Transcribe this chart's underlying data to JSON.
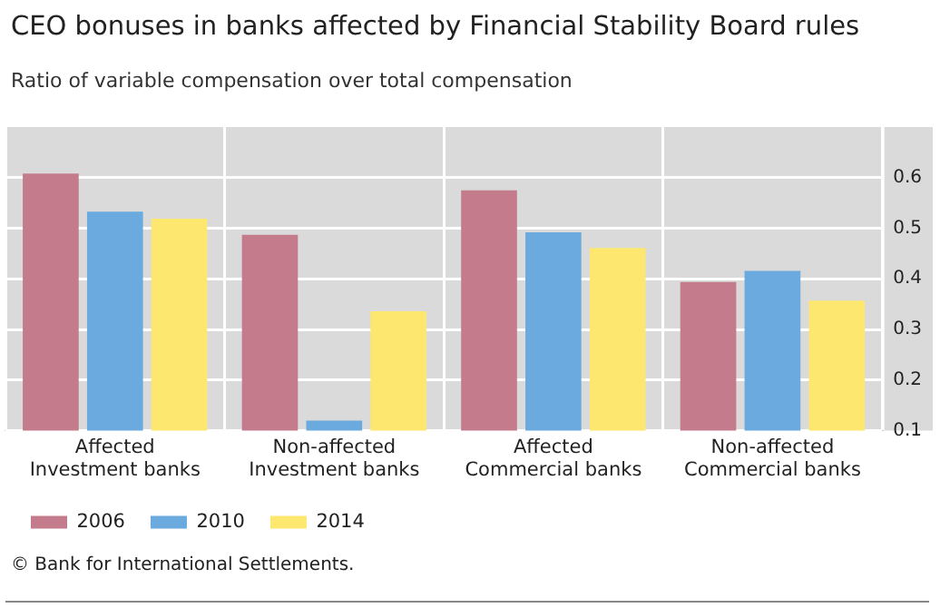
{
  "chart_data": {
    "type": "bar",
    "title": "CEO bonuses in banks affected by Financial Stability Board rules",
    "subtitle": "Ratio of variable compensation over total compensation",
    "categories": [
      "Affected Investment banks",
      "Non-affected Investment banks",
      "Affected Commercial banks",
      "Non-affected Commercial banks"
    ],
    "series": [
      {
        "name": "2006",
        "color": "#c47c8c",
        "values": [
          0.608,
          0.487,
          0.575,
          0.394
        ]
      },
      {
        "name": "2010",
        "color": "#6aaade",
        "values": [
          0.533,
          0.12,
          0.492,
          0.416
        ]
      },
      {
        "name": "2014",
        "color": "#fde76e",
        "values": [
          0.519,
          0.336,
          0.461,
          0.357
        ]
      }
    ],
    "ylim": [
      0.1,
      0.7
    ],
    "yticks": [
      0.1,
      0.2,
      0.3,
      0.4,
      0.5,
      0.6
    ],
    "grid": true,
    "legend": "bottom left",
    "annotations": [
      "© Bank for International Settlements."
    ]
  }
}
